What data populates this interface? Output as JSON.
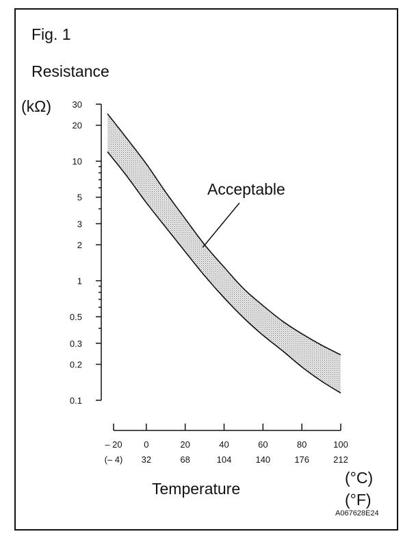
{
  "figure": {
    "fig_label": "Fig. 1",
    "code": "A067628E24",
    "band_fill": "#d4d4d4"
  },
  "chart_data": {
    "type": "area",
    "title": "",
    "ylabel": "Resistance",
    "yunit": "(kΩ)",
    "yscale": "log",
    "ylim": [
      0.1,
      30
    ],
    "yticks": [
      30,
      20,
      10,
      5,
      3,
      2,
      1,
      0.5,
      0.3,
      0.2,
      0.1
    ],
    "ytick_labels": [
      "30",
      "20",
      "10",
      "5",
      "3",
      "2",
      "1",
      "0.5",
      "0.3",
      "0.2",
      "0.1"
    ],
    "xlabel": "Temperature",
    "xunit_c": "(°C)",
    "xunit_f": "(°F)",
    "xlim": [
      -20,
      100
    ],
    "xticks_c": [
      -20,
      0,
      20,
      40,
      60,
      80,
      100
    ],
    "xtick_labels_c": [
      "– 20",
      "0",
      "20",
      "40",
      "60",
      "80",
      "100"
    ],
    "xtick_labels_f": [
      "(– 4)",
      "32",
      "68",
      "104",
      "140",
      "176",
      "212"
    ],
    "annotation": "Acceptable",
    "annotation_points_to": {
      "x": 29,
      "y": 1.9
    },
    "series": [
      {
        "role": "upper",
        "x": [
          -20,
          -10,
          0,
          10,
          20,
          30,
          40,
          50,
          60,
          70,
          80,
          90,
          100
        ],
        "y": [
          25,
          15.5,
          9.5,
          5.5,
          3.3,
          2.0,
          1.3,
          0.86,
          0.62,
          0.46,
          0.36,
          0.29,
          0.24
        ]
      },
      {
        "role": "lower",
        "x": [
          -20,
          -10,
          0,
          10,
          20,
          30,
          40,
          50,
          60,
          70,
          80,
          90,
          100
        ],
        "y": [
          12,
          7.5,
          4.5,
          2.8,
          1.75,
          1.1,
          0.72,
          0.49,
          0.35,
          0.26,
          0.19,
          0.145,
          0.115
        ]
      }
    ]
  }
}
